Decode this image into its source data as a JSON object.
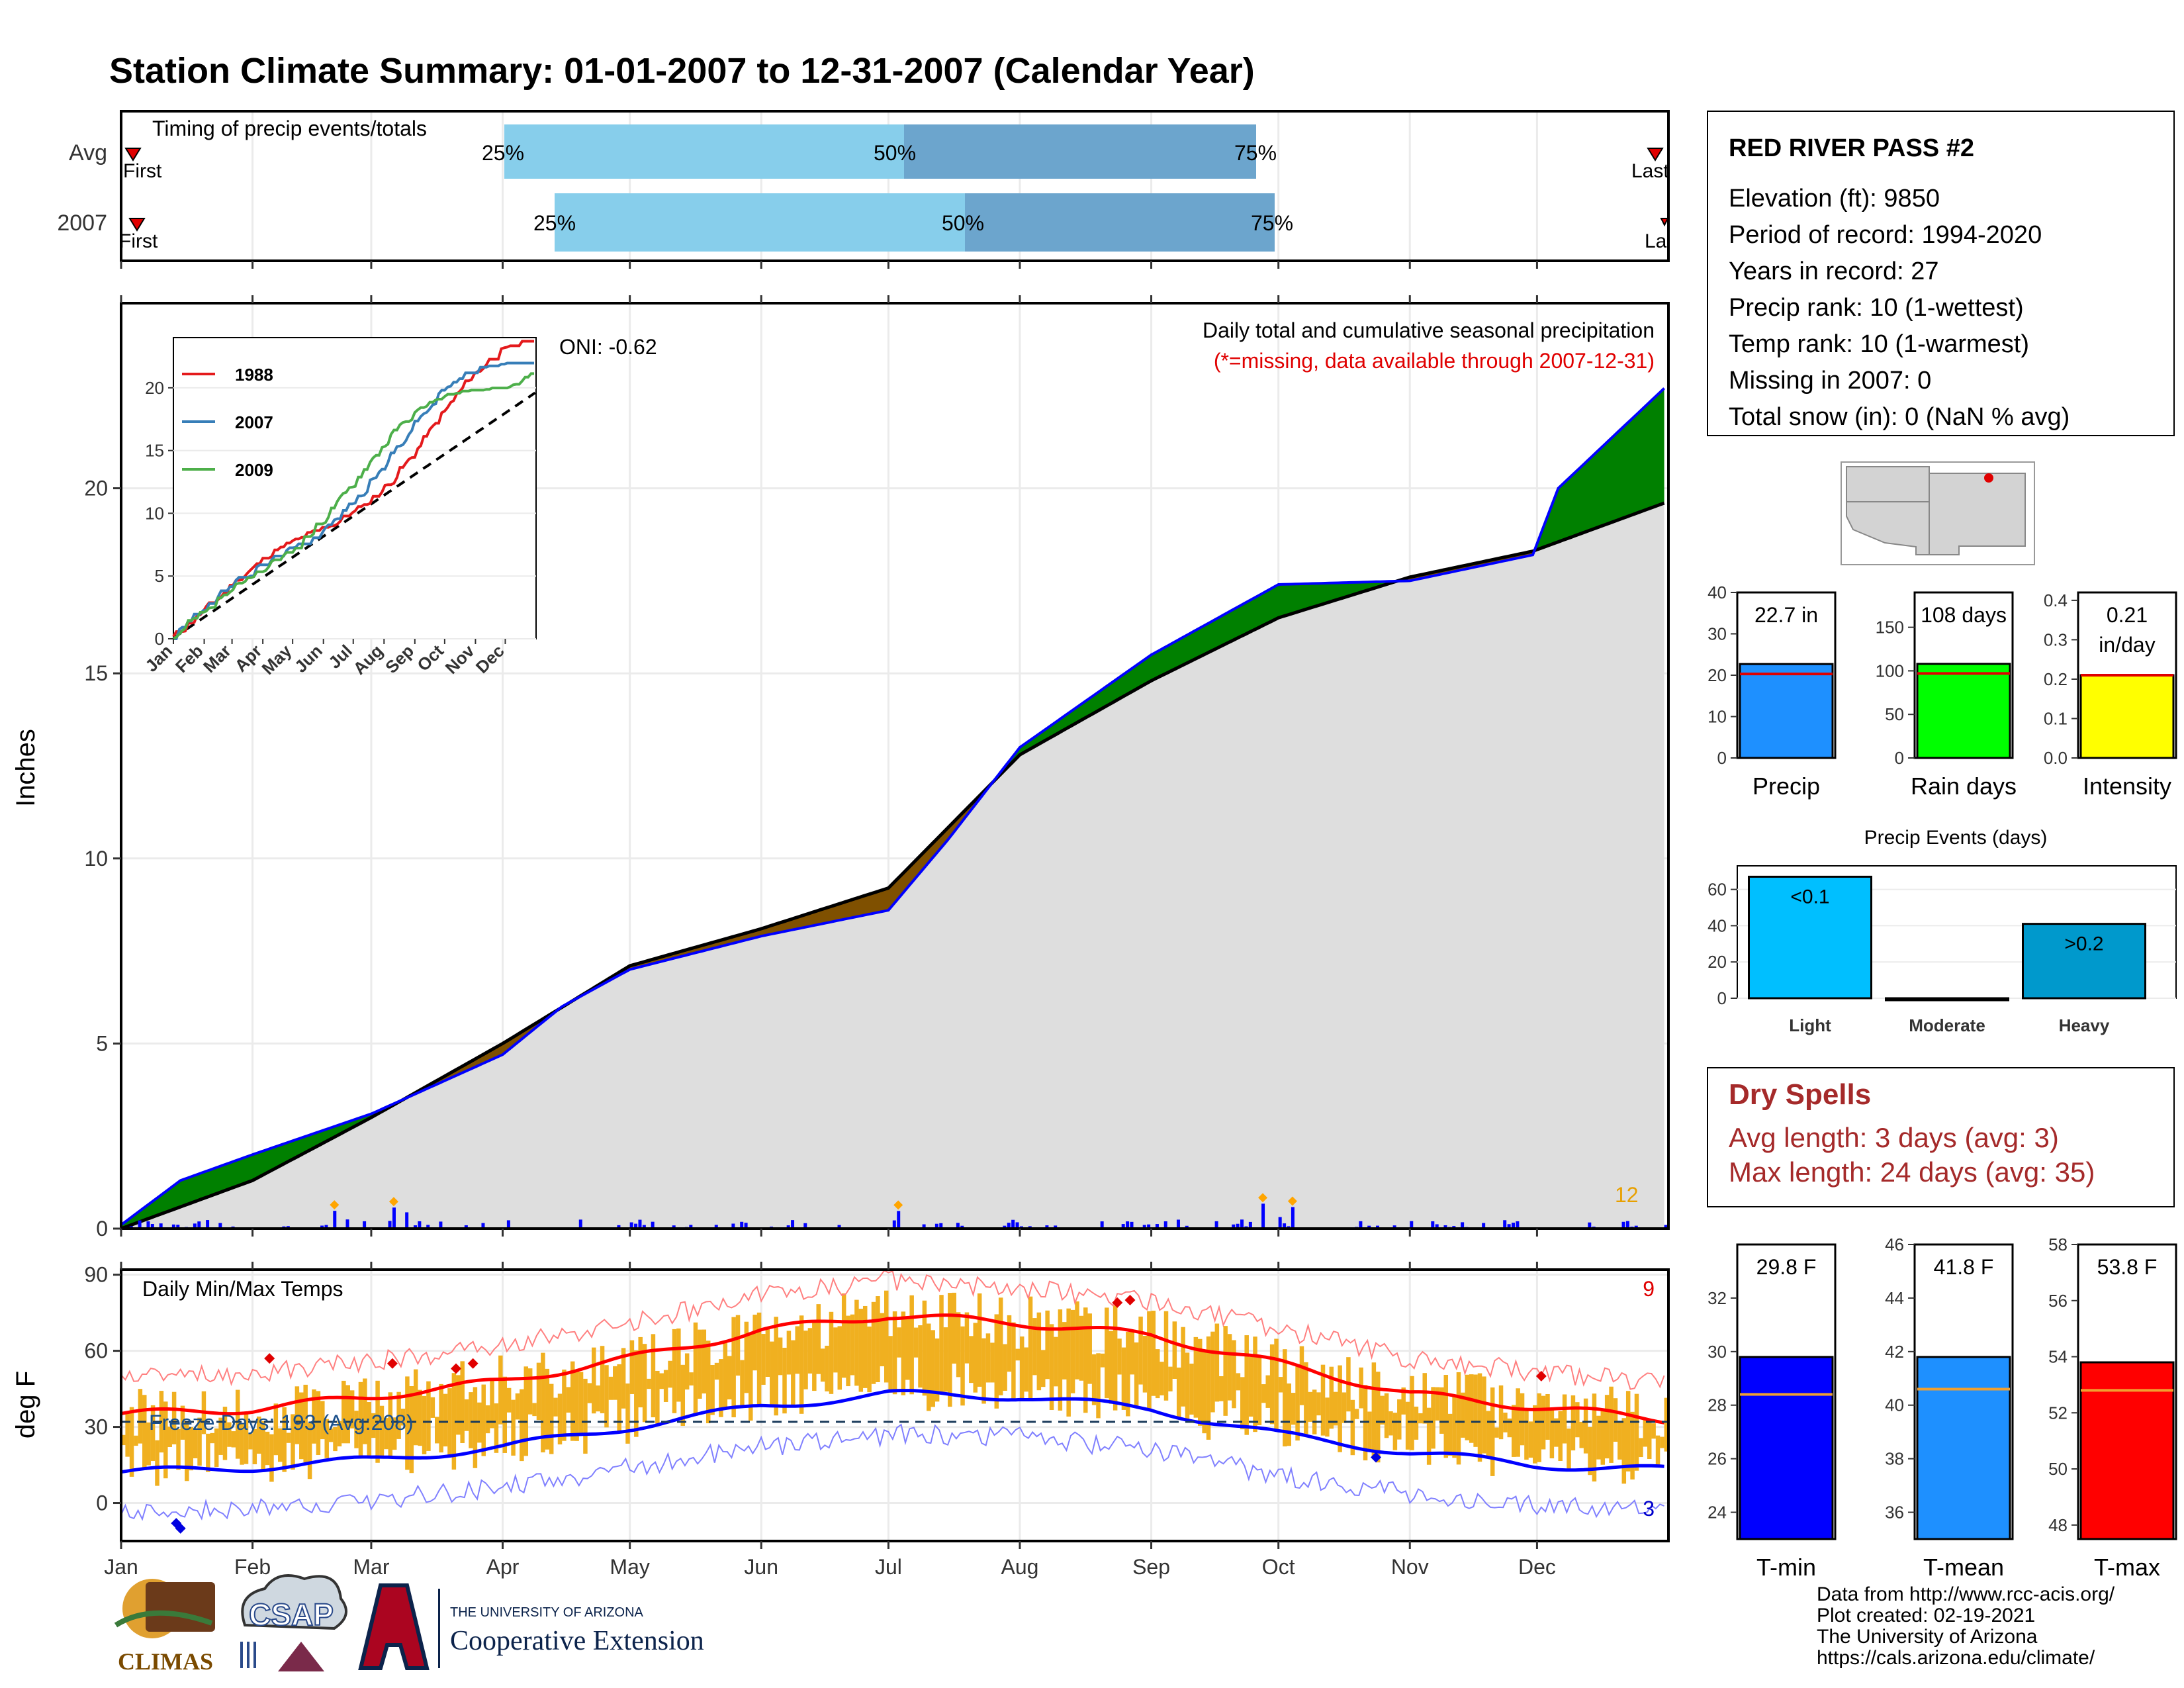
{
  "title": "Station Climate Summary: 01-01-2007 to 12-31-2007 (Calendar Year)",
  "timing": {
    "label": "Timing of precip events/totals",
    "rows": [
      {
        "name": "Avg",
        "first": "First",
        "last": "Last",
        "p25": "25%",
        "p50": "50%",
        "p75": "75%"
      },
      {
        "name": "2007",
        "first": "First",
        "last": "Last",
        "p25": "25%",
        "p50": "50%",
        "p75": "75%"
      }
    ]
  },
  "precip_panel": {
    "ylabel": "Inches",
    "title": "Daily total and cumulative seasonal precipitation",
    "missing_note": "(*=missing, data available through 2007-12-31)",
    "oni": "ONI: -0.62",
    "count_label": "12",
    "y_ticks": [
      "0",
      "5",
      "10",
      "15",
      "20"
    ]
  },
  "inset": {
    "legend": [
      "1988",
      "2007",
      "2009"
    ],
    "colors": [
      "#e41a1c",
      "#377eb8",
      "#4daf4a"
    ],
    "y_ticks": [
      "0",
      "5",
      "10",
      "15",
      "20"
    ],
    "x_ticks": [
      "Jan",
      "Feb",
      "Mar",
      "Apr",
      "May",
      "Jun",
      "Jul",
      "Aug",
      "Sep",
      "Oct",
      "Nov",
      "Dec"
    ]
  },
  "temp_panel": {
    "ylabel": "deg F",
    "title": "Daily Min/Max Temps",
    "freeze": "Freeze Days: 193 (Avg:208)",
    "max_count": "9",
    "min_count": "3",
    "y_ticks": [
      "0",
      "30",
      "60",
      "90"
    ]
  },
  "months": [
    "Jan",
    "Feb",
    "Mar",
    "Apr",
    "May",
    "Jun",
    "Jul",
    "Aug",
    "Sep",
    "Oct",
    "Nov",
    "Dec"
  ],
  "station": {
    "name": "RED RIVER PASS #2",
    "lines": [
      "Elevation (ft): 9850",
      "Period of record: 1994-2020",
      "Years in record: 27",
      "Precip rank: 10 (1-wettest)",
      "Temp rank: 10 (1-warmest)",
      "Missing in 2007: 0",
      "Total snow (in): 0 (NaN % avg)"
    ]
  },
  "bars_top": [
    {
      "label": "Precip",
      "value_label": "22.7 in",
      "value": 22.7,
      "avg": 20.3,
      "ymax": 40,
      "ticks": [
        "0",
        "10",
        "20",
        "30",
        "40"
      ],
      "color": "#1e90ff"
    },
    {
      "label": "Rain days",
      "value_label": "108 days",
      "value": 108,
      "avg": 97,
      "ymax": 190,
      "ticks": [
        "0",
        "50",
        "100",
        "150"
      ],
      "color": "#00ff00"
    },
    {
      "label": "Intensity",
      "value_label": "0.21 in/day",
      "value_line1": "0.21",
      "value_line2": "in/day",
      "value": 0.21,
      "avg": 0.21,
      "ymax": 0.42,
      "ticks": [
        "0.0",
        "0.1",
        "0.2",
        "0.3",
        "0.4"
      ],
      "color": "#ffff00"
    }
  ],
  "precip_events": {
    "title": "Precip Events (days)",
    "categories": [
      "Light",
      "Moderate",
      "Heavy"
    ],
    "values": [
      67,
      0,
      41
    ],
    "bar_labels": [
      "<0.1",
      "",
      ">0.2"
    ],
    "ticks": [
      "0",
      "20",
      "40",
      "60"
    ]
  },
  "dry_spells": {
    "title": "Dry Spells",
    "avg_line": "Avg length: 3 days (avg: 3)",
    "max_line": "Max length: 24 days (avg: 35)"
  },
  "bars_temp": [
    {
      "label": "T-min",
      "value_label": "29.8 F",
      "value": 29.8,
      "avg": 28.4,
      "min": 23,
      "max": 34,
      "ticks": [
        "24",
        "26",
        "28",
        "30",
        "32"
      ],
      "color": "#0000ff"
    },
    {
      "label": "T-mean",
      "value_label": "41.8 F",
      "value": 41.8,
      "avg": 40.6,
      "min": 35,
      "max": 46,
      "ticks": [
        "36",
        "38",
        "40",
        "42",
        "44",
        "46"
      ],
      "color": "#1e90ff"
    },
    {
      "label": "T-max",
      "value_label": "53.8 F",
      "value": 53.8,
      "avg": 52.8,
      "min": 47.5,
      "max": 58,
      "ticks": [
        "48",
        "50",
        "52",
        "54",
        "56",
        "58"
      ],
      "color": "#ff0000"
    }
  ],
  "footer": [
    "Data from http://www.rcc-acis.org/",
    "Plot created: 02-19-2021",
    "The University of Arizona",
    "https://cals.arizona.edu/climate/"
  ],
  "logos": {
    "climas": "CLIMAS",
    "csap": "CSAP",
    "university": "THE UNIVERSITY OF ARIZONA",
    "extension": "Cooperative Extension"
  },
  "chart_data": [
    {
      "type": "area",
      "title": "Daily total and cumulative seasonal precipitation",
      "ylabel": "Inches",
      "ylim": [
        0,
        25
      ],
      "x_unit": "day of year",
      "series": [
        {
          "name": "2007",
          "x": [
            1,
            15,
            32,
            60,
            91,
            105,
            121,
            152,
            182,
            196,
            213,
            244,
            274,
            305,
            334,
            340,
            365
          ],
          "values": [
            0.1,
            1.3,
            2.0,
            3.1,
            4.7,
            6.0,
            7.0,
            7.9,
            8.6,
            10.5,
            13.0,
            15.5,
            17.4,
            17.5,
            18.2,
            20.0,
            22.7
          ]
        },
        {
          "name": "Avg",
          "x": [
            1,
            32,
            60,
            91,
            121,
            152,
            182,
            213,
            244,
            274,
            305,
            334,
            365
          ],
          "values": [
            0,
            1.3,
            3.0,
            5.0,
            7.1,
            8.1,
            9.2,
            12.8,
            14.8,
            16.5,
            17.6,
            18.3,
            19.6
          ]
        }
      ]
    },
    {
      "type": "line",
      "title": "Daily Min/Max Temps",
      "ylabel": "deg F",
      "ylim": [
        -15,
        92
      ],
      "x_unit": "day of year",
      "series": [
        {
          "name": "Avg max",
          "x": [
            1,
            32,
            60,
            91,
            121,
            152,
            182,
            213,
            244,
            274,
            305,
            334,
            365
          ],
          "values": [
            35,
            37,
            42,
            48,
            57,
            68,
            74,
            71,
            66,
            55,
            43,
            38,
            33
          ]
        },
        {
          "name": "Avg min",
          "x": [
            1,
            32,
            60,
            91,
            121,
            152,
            182,
            213,
            244,
            274,
            305,
            334,
            365
          ],
          "values": [
            12,
            14,
            17,
            22,
            30,
            38,
            43,
            42,
            37,
            27,
            20,
            15,
            13
          ]
        }
      ]
    },
    {
      "type": "bar",
      "title": "Precip Events (days)",
      "categories": [
        "Light",
        "Moderate",
        "Heavy"
      ],
      "values": [
        67,
        0,
        41
      ]
    }
  ]
}
